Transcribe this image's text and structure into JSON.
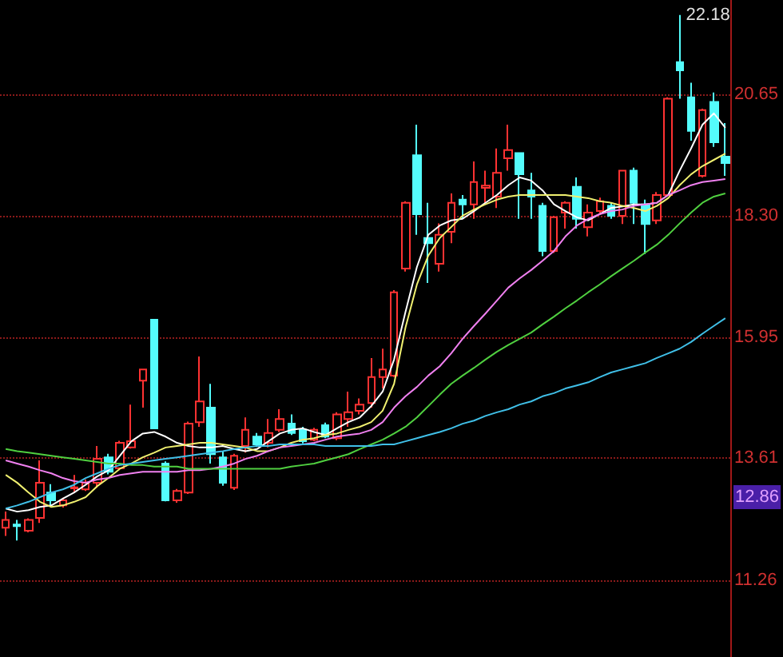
{
  "chart_data": {
    "type": "candlestick",
    "categories": [
      null,
      null,
      null,
      null,
      null,
      null,
      null,
      null,
      null,
      null,
      null,
      null,
      null,
      null,
      null,
      null,
      null,
      null,
      null,
      null,
      null,
      null,
      null,
      null,
      null,
      null,
      null,
      null,
      null,
      null,
      null,
      null,
      null,
      null,
      null,
      null,
      null,
      null,
      null,
      null,
      null,
      null,
      null,
      null,
      null,
      null,
      null,
      null,
      null,
      null,
      null,
      null,
      null,
      null,
      null,
      null,
      null,
      null,
      null,
      null,
      null,
      null,
      null,
      null
    ],
    "ohlc": [
      [
        12.27,
        12.58,
        12.11,
        12.42
      ],
      [
        12.33,
        12.42,
        12.02,
        12.3
      ],
      [
        12.21,
        12.45,
        12.18,
        12.42
      ],
      [
        12.46,
        13.57,
        12.36,
        13.14
      ],
      [
        12.95,
        13.11,
        12.67,
        12.8
      ],
      [
        12.7,
        12.85,
        12.66,
        12.8
      ],
      [
        13.03,
        13.29,
        12.95,
        13.05
      ],
      [
        13.01,
        13.2,
        12.98,
        13.14
      ],
      [
        13.14,
        13.85,
        13.04,
        13.6
      ],
      [
        13.63,
        13.7,
        13.3,
        13.35
      ],
      [
        13.42,
        13.95,
        13.38,
        13.91
      ],
      [
        13.82,
        14.65,
        13.8,
        13.94
      ],
      [
        15.11,
        15.33,
        14.59,
        15.33
      ],
      [
        16.29,
        16.29,
        14.19,
        14.19
      ],
      [
        13.51,
        13.55,
        12.78,
        12.8
      ],
      [
        12.8,
        13.02,
        12.75,
        12.98
      ],
      [
        12.95,
        14.32,
        12.92,
        14.28
      ],
      [
        14.31,
        15.58,
        14.22,
        14.71
      ],
      [
        14.59,
        15.05,
        13.51,
        13.69
      ],
      [
        13.63,
        13.75,
        13.08,
        13.14
      ],
      [
        13.04,
        13.7,
        13.0,
        13.66
      ],
      [
        13.85,
        14.4,
        13.72,
        14.16
      ],
      [
        14.03,
        14.1,
        13.83,
        13.88
      ],
      [
        13.91,
        14.37,
        13.82,
        14.1
      ],
      [
        14.16,
        14.56,
        14.12,
        14.37
      ],
      [
        14.28,
        14.46,
        14.06,
        14.1
      ],
      [
        14.16,
        14.22,
        13.9,
        13.94
      ],
      [
        13.97,
        14.2,
        13.94,
        14.16
      ],
      [
        14.25,
        14.3,
        14.0,
        14.03
      ],
      [
        14.0,
        14.5,
        13.96,
        14.46
      ],
      [
        14.37,
        14.9,
        14.22,
        14.5
      ],
      [
        14.53,
        14.77,
        14.46,
        14.65
      ],
      [
        14.68,
        15.55,
        14.59,
        15.18
      ],
      [
        15.18,
        15.73,
        14.96,
        15.33
      ],
      [
        15.21,
        16.86,
        15.18,
        16.82
      ],
      [
        17.28,
        18.58,
        17.22,
        18.55
      ],
      [
        19.47,
        20.06,
        17.93,
        18.33
      ],
      [
        17.87,
        18.55,
        17.0,
        17.77
      ],
      [
        17.37,
        18.15,
        17.22,
        17.93
      ],
      [
        17.99,
        18.73,
        17.77,
        18.55
      ],
      [
        18.61,
        18.7,
        18.24,
        18.52
      ],
      [
        18.52,
        19.35,
        18.24,
        18.95
      ],
      [
        18.84,
        19.17,
        18.55,
        18.88
      ],
      [
        18.67,
        19.6,
        18.45,
        19.13
      ],
      [
        19.41,
        20.06,
        19.17,
        19.57
      ],
      [
        19.51,
        19.51,
        18.24,
        19.1
      ],
      [
        18.79,
        19.13,
        18.24,
        18.67
      ],
      [
        18.49,
        18.55,
        17.52,
        17.62
      ],
      [
        17.62,
        18.3,
        17.58,
        18.27
      ],
      [
        18.36,
        18.58,
        18.05,
        18.55
      ],
      [
        18.86,
        19.04,
        18.05,
        18.24
      ],
      [
        18.08,
        18.52,
        17.9,
        18.36
      ],
      [
        18.39,
        18.65,
        18.33,
        18.58
      ],
      [
        18.49,
        18.55,
        18.24,
        18.3
      ],
      [
        18.3,
        19.17,
        18.14,
        19.17
      ],
      [
        19.17,
        19.23,
        18.14,
        18.55
      ],
      [
        18.52,
        18.61,
        17.56,
        18.14
      ],
      [
        18.21,
        18.76,
        18.14,
        18.7
      ],
      [
        18.7,
        20.59,
        18.67,
        20.56
      ],
      [
        21.27,
        22.18,
        20.56,
        21.11
      ],
      [
        20.59,
        20.87,
        19.75,
        19.94
      ],
      [
        19.07,
        20.37,
        19.04,
        20.34
      ],
      [
        20.5,
        20.68,
        19.63,
        19.72
      ],
      [
        19.44,
        20.09,
        19.07,
        19.32
      ]
    ],
    "colors": [
      "#ff3232",
      "#54fcfc",
      "#ff3232",
      "#ff3232",
      "#54fcfc",
      "#ff3232",
      "#ff3232",
      "#ff3232",
      "#ff3232",
      "#54fcfc",
      "#ff3232",
      "#ff3232",
      "#ff3232",
      "#54fcfc",
      "#54fcfc",
      "#ff3232",
      "#ff3232",
      "#ff3232",
      "#54fcfc",
      "#54fcfc",
      "#ff3232",
      "#ff3232",
      "#54fcfc",
      "#ff3232",
      "#ff3232",
      "#54fcfc",
      "#54fcfc",
      "#ff3232",
      "#54fcfc",
      "#ff3232",
      "#ff3232",
      "#ff3232",
      "#ff3232",
      "#ff3232",
      "#ff3232",
      "#ff3232",
      "#54fcfc",
      "#54fcfc",
      "#ff3232",
      "#ff3232",
      "#54fcfc",
      "#ff3232",
      "#ff3232",
      "#ff3232",
      "#ff3232",
      "#54fcfc",
      "#54fcfc",
      "#54fcfc",
      "#ff3232",
      "#ff3232",
      "#54fcfc",
      "#ff3232",
      "#ff3232",
      "#54fcfc",
      "#ff3232",
      "#54fcfc",
      "#54fcfc",
      "#ff3232",
      "#ff3232",
      "#54fcfc",
      "#54fcfc",
      "#ff3232",
      "#54fcfc",
      "#54fcfc"
    ],
    "series": [
      {
        "type": "line",
        "color": "#ffffff",
        "values": [
          12.64,
          12.58,
          12.61,
          12.67,
          12.7,
          12.83,
          12.95,
          13.1,
          13.26,
          13.38,
          13.66,
          13.94,
          14.09,
          14.12,
          14.03,
          13.91,
          13.85,
          13.82,
          13.82,
          13.85,
          13.79,
          13.75,
          13.79,
          13.94,
          14.09,
          14.16,
          14.19,
          14.12,
          14.06,
          14.19,
          14.31,
          14.4,
          14.62,
          14.9,
          15.52,
          16.44,
          17.31,
          17.93,
          18.11,
          18.21,
          18.24,
          18.39,
          18.55,
          18.7,
          18.89,
          19.04,
          18.98,
          18.79,
          18.52,
          18.39,
          18.27,
          18.21,
          18.33,
          18.45,
          18.48,
          18.52,
          18.52,
          18.55,
          18.7,
          19.17,
          19.6,
          20.06,
          20.28,
          20.0
        ]
      },
      {
        "type": "line",
        "color": "#f0f070",
        "values": [
          13.29,
          13.14,
          12.95,
          12.77,
          12.67,
          12.7,
          12.77,
          12.86,
          13.07,
          13.23,
          13.41,
          13.51,
          13.63,
          13.72,
          13.82,
          13.85,
          13.88,
          13.91,
          13.91,
          13.88,
          13.85,
          13.82,
          13.75,
          13.75,
          13.82,
          13.91,
          13.97,
          14.0,
          14.06,
          14.09,
          14.16,
          14.22,
          14.31,
          14.53,
          15.05,
          16.14,
          16.97,
          17.53,
          17.87,
          18.08,
          18.3,
          18.42,
          18.52,
          18.61,
          18.67,
          18.7,
          18.7,
          18.7,
          18.7,
          18.7,
          18.67,
          18.64,
          18.58,
          18.55,
          18.49,
          18.45,
          18.39,
          18.49,
          18.64,
          18.89,
          19.1,
          19.26,
          19.38,
          19.5
        ]
      },
      {
        "type": "line",
        "color": "#f080f0",
        "values": [
          13.57,
          13.51,
          13.45,
          13.38,
          13.32,
          13.23,
          13.17,
          13.14,
          13.2,
          13.23,
          13.29,
          13.32,
          13.35,
          13.35,
          13.35,
          13.35,
          13.38,
          13.38,
          13.41,
          13.45,
          13.51,
          13.6,
          13.66,
          13.75,
          13.82,
          13.85,
          13.88,
          13.91,
          13.97,
          14.03,
          14.06,
          14.09,
          14.16,
          14.31,
          14.59,
          14.81,
          14.99,
          15.21,
          15.39,
          15.64,
          15.92,
          16.17,
          16.41,
          16.66,
          16.91,
          17.09,
          17.25,
          17.43,
          17.62,
          17.9,
          18.11,
          18.24,
          18.33,
          18.39,
          18.42,
          18.49,
          18.52,
          18.55,
          18.7,
          18.79,
          18.89,
          18.95,
          18.98,
          19.01
        ]
      },
      {
        "type": "line",
        "color": "#50d040",
        "values": [
          13.79,
          13.75,
          13.72,
          13.69,
          13.66,
          13.63,
          13.6,
          13.57,
          13.54,
          13.51,
          13.51,
          13.48,
          13.48,
          13.45,
          13.45,
          13.45,
          13.41,
          13.41,
          13.41,
          13.41,
          13.41,
          13.41,
          13.41,
          13.41,
          13.41,
          13.45,
          13.48,
          13.51,
          13.57,
          13.63,
          13.69,
          13.79,
          13.88,
          13.97,
          14.09,
          14.22,
          14.4,
          14.62,
          14.84,
          15.05,
          15.21,
          15.36,
          15.52,
          15.67,
          15.8,
          15.92,
          16.04,
          16.2,
          16.35,
          16.51,
          16.66,
          16.82,
          16.97,
          17.13,
          17.28,
          17.43,
          17.59,
          17.74,
          17.93,
          18.15,
          18.36,
          18.55,
          18.67,
          18.73
        ]
      },
      {
        "type": "line",
        "color": "#40c0e8",
        "values": [
          12.64,
          12.7,
          12.77,
          12.86,
          12.95,
          13.01,
          13.1,
          13.23,
          13.32,
          13.41,
          13.48,
          13.51,
          13.54,
          13.57,
          13.6,
          13.63,
          13.66,
          13.69,
          13.72,
          13.75,
          13.79,
          13.82,
          13.85,
          13.85,
          13.88,
          13.88,
          13.88,
          13.88,
          13.85,
          13.85,
          13.85,
          13.85,
          13.85,
          13.88,
          13.88,
          13.94,
          14.0,
          14.06,
          14.12,
          14.19,
          14.28,
          14.34,
          14.43,
          14.5,
          14.56,
          14.65,
          14.71,
          14.81,
          14.87,
          14.96,
          15.02,
          15.08,
          15.18,
          15.27,
          15.33,
          15.39,
          15.45,
          15.55,
          15.64,
          15.73,
          15.86,
          16.02,
          16.17,
          16.32
        ]
      }
    ],
    "ylim": [
      9.77,
      22.47
    ],
    "yticks": [
      {
        "value": 11.26,
        "label": "11.26"
      },
      {
        "value": 13.61,
        "label": "13.61"
      },
      {
        "value": 15.95,
        "label": "15.95"
      },
      {
        "value": 18.3,
        "label": "18.30"
      },
      {
        "value": 20.65,
        "label": "20.65"
      }
    ],
    "tick_labels": "y",
    "grid": "y",
    "marker": "none",
    "annotations": [
      "22.18",
      {
        "text": "12.86",
        "y": 12.86
      }
    ]
  }
}
